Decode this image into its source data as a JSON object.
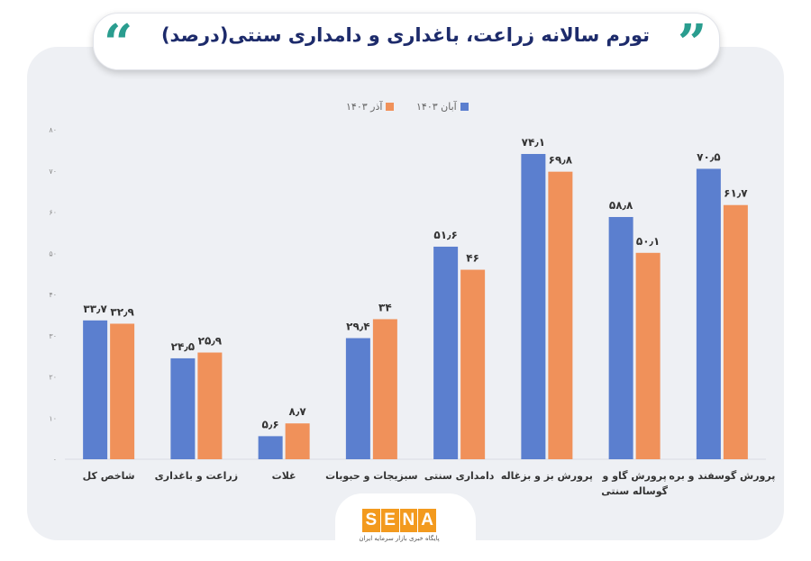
{
  "title": "تورم سالانه زراعت، باغداری و دامداری سنتی(درصد)",
  "logo": {
    "text": "SENA",
    "letters": [
      "S",
      "E",
      "N",
      "A"
    ],
    "subtitle": "پایگاه خبری بازار سرمایه ایران"
  },
  "colors": {
    "series1": "#5b7fcf",
    "series2": "#f0915a",
    "accent": "#2a9d8f",
    "title": "#1d2b6b",
    "logo": "#f39a1e"
  },
  "chart_data": {
    "type": "bar",
    "categories": [
      "شاخص کل",
      "زراعت و باغداری",
      "غلات",
      "سبزیجات و حبوبات",
      "دامداری سنتی",
      "پرورش بز و بزغاله",
      "پرورش گاو و گوساله سنتی",
      "پرورش گوسفند و بره"
    ],
    "series": [
      {
        "name": "آبان ۱۴۰۳",
        "values": [
          33.7,
          24.5,
          5.6,
          29.4,
          51.6,
          74.1,
          58.8,
          70.5
        ],
        "labels": [
          "۳۳٫۷",
          "۲۴٫۵",
          "۵٫۶",
          "۲۹٫۴",
          "۵۱٫۶",
          "۷۴٫۱",
          "۵۸٫۸",
          "۷۰٫۵"
        ]
      },
      {
        "name": "آذر ۱۴۰۳",
        "values": [
          32.9,
          25.9,
          8.7,
          34,
          46,
          69.8,
          50.1,
          61.7
        ],
        "labels": [
          "۳۲٫۹",
          "۲۵٫۹",
          "۸٫۷",
          "۳۴",
          "۴۶",
          "۶۹٫۸",
          "۵۰٫۱",
          "۶۱٫۷"
        ]
      }
    ],
    "yticks": [
      "۰",
      "۱۰",
      "۲۰",
      "۳۰",
      "۴۰",
      "۵۰",
      "۶۰",
      "۷۰",
      "۸۰"
    ],
    "ylim": [
      0,
      80
    ],
    "legend_position": "top-center",
    "grid": false
  }
}
